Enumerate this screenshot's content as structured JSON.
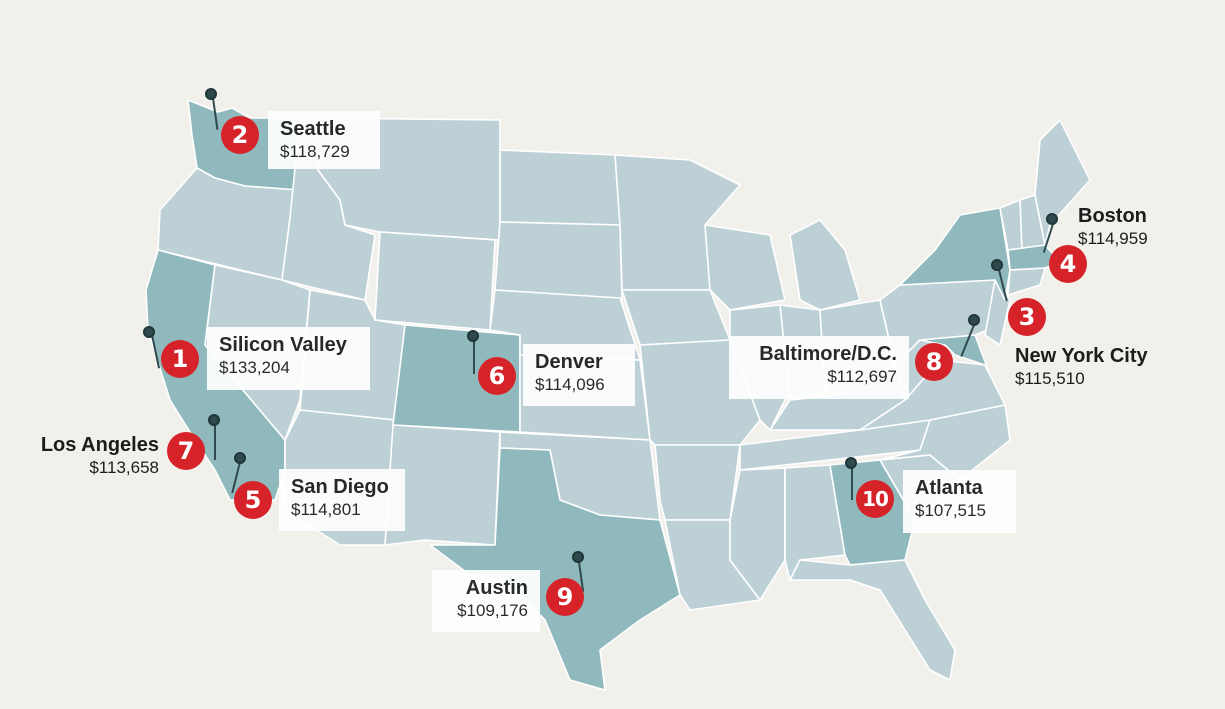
{
  "colors": {
    "background": "#f1f0eb",
    "state": "#bcd0d6",
    "highlight_state": "#8fb9bd",
    "badge": "#d6232a",
    "pin": "#2f4a4d"
  },
  "cities": [
    {
      "rank": "1",
      "name": "Silicon Valley",
      "value": "$133,204"
    },
    {
      "rank": "2",
      "name": "Seattle",
      "value": "$118,729"
    },
    {
      "rank": "3",
      "name": "New York City",
      "value": "$115,510"
    },
    {
      "rank": "4",
      "name": "Boston",
      "value": "$114,959"
    },
    {
      "rank": "5",
      "name": "San Diego",
      "value": "$114,801"
    },
    {
      "rank": "6",
      "name": "Denver",
      "value": "$114,096"
    },
    {
      "rank": "7",
      "name": "Los Angeles",
      "value": "$113,658"
    },
    {
      "rank": "8",
      "name": "Baltimore/D.C.",
      "value": "$112,697"
    },
    {
      "rank": "9",
      "name": "Austin",
      "value": "$109,176"
    },
    {
      "rank": "10",
      "name": "Atlanta",
      "value": "$107,515"
    }
  ]
}
